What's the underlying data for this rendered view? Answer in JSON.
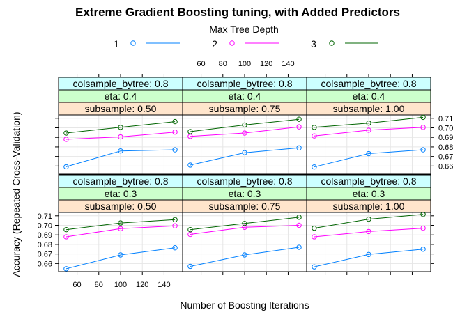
{
  "chart_data": {
    "type": "line",
    "title": "Extreme Gradient Boosting tuning, with Added Predictors",
    "xlabel": "Number of Boosting Iterations",
    "ylabel": "Accuracy (Repeated Cross-Validation)",
    "legend": {
      "title": "Max Tree Depth",
      "placement": "top",
      "entries": [
        "1",
        "2",
        "3"
      ]
    },
    "colors": {
      "1": "#0080ff",
      "2": "#ff00ff",
      "3": "#006400"
    },
    "strip_colors": {
      "colsample": "#ccffff",
      "eta": "#ccffcc",
      "subsample": "#ffe5cc"
    },
    "x": [
      50,
      100,
      150
    ],
    "xlim": [
      43,
      157
    ],
    "ylim": [
      0.6515,
      0.7135
    ],
    "xticks": [
      60,
      80,
      100,
      120,
      140
    ],
    "yticks": [
      0.66,
      0.67,
      0.68,
      0.69,
      0.7,
      0.71
    ],
    "xtick_labels": [
      "60",
      "80",
      "100",
      "120",
      "140"
    ],
    "ytick_labels": [
      "0.66",
      "0.67",
      "0.68",
      "0.69",
      "0.70",
      "0.71"
    ],
    "grid": true,
    "panels": [
      {
        "row": "top",
        "col": 0,
        "strips": [
          "colsample_bytree: 0.8",
          "eta: 0.4",
          "subsample: 0.50"
        ],
        "series": [
          {
            "name": "1",
            "values": [
              0.6592,
              0.6758,
              0.677
            ]
          },
          {
            "name": "2",
            "values": [
              0.688,
              0.6905,
              0.6955
            ]
          },
          {
            "name": "3",
            "values": [
              0.6945,
              0.7005,
              0.7065
            ]
          }
        ]
      },
      {
        "row": "top",
        "col": 1,
        "strips": [
          "colsample_bytree: 0.8",
          "eta: 0.4",
          "subsample: 0.75"
        ],
        "series": [
          {
            "name": "1",
            "values": [
              0.661,
              0.674,
              0.679
            ]
          },
          {
            "name": "2",
            "values": [
              0.691,
              0.6945,
              0.701
            ]
          },
          {
            "name": "3",
            "values": [
              0.696,
              0.703,
              0.709
            ]
          }
        ]
      },
      {
        "row": "top",
        "col": 2,
        "strips": [
          "colsample_bytree: 0.8",
          "eta: 0.4",
          "subsample: 1.00"
        ],
        "series": [
          {
            "name": "1",
            "values": [
              0.659,
              0.673,
              0.677
            ]
          },
          {
            "name": "2",
            "values": [
              0.6915,
              0.6975,
              0.7005
            ]
          },
          {
            "name": "3",
            "values": [
              0.7005,
              0.705,
              0.711
            ]
          }
        ]
      },
      {
        "row": "bottom",
        "col": 0,
        "strips": [
          "colsample_bytree: 0.8",
          "eta: 0.3",
          "subsample: 0.50"
        ],
        "series": [
          {
            "name": "1",
            "values": [
              0.6545,
              0.669,
              0.6765
            ]
          },
          {
            "name": "2",
            "values": [
              0.688,
              0.6965,
              0.6995
            ]
          },
          {
            "name": "3",
            "values": [
              0.6955,
              0.7025,
              0.706
            ]
          }
        ]
      },
      {
        "row": "bottom",
        "col": 1,
        "strips": [
          "colsample_bytree: 0.8",
          "eta: 0.3",
          "subsample: 0.75"
        ],
        "series": [
          {
            "name": "1",
            "values": [
              0.657,
              0.669,
              0.677
            ]
          },
          {
            "name": "2",
            "values": [
              0.6905,
              0.698,
              0.7
            ]
          },
          {
            "name": "3",
            "values": [
              0.6955,
              0.702,
              0.7085
            ]
          }
        ]
      },
      {
        "row": "bottom",
        "col": 2,
        "strips": [
          "colsample_bytree: 0.8",
          "eta: 0.3",
          "subsample: 1.00"
        ],
        "series": [
          {
            "name": "1",
            "values": [
              0.6565,
              0.6695,
              0.675
            ]
          },
          {
            "name": "2",
            "values": [
              0.688,
              0.6935,
              0.697
            ]
          },
          {
            "name": "3",
            "values": [
              0.697,
              0.7065,
              0.7115
            ]
          }
        ]
      }
    ]
  }
}
